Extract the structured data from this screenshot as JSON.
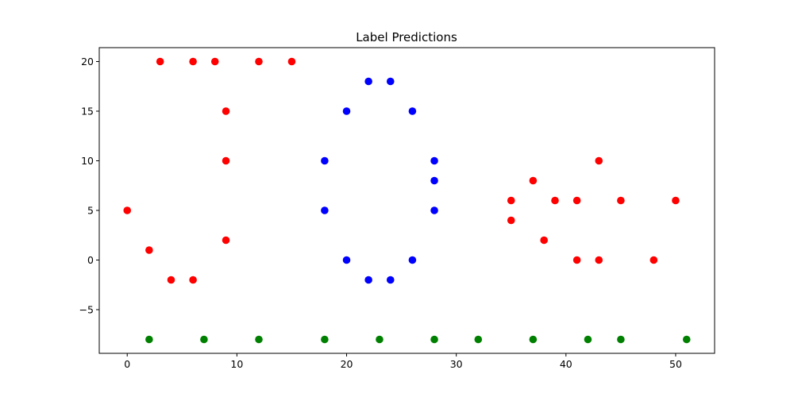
{
  "chart_data": {
    "type": "scatter",
    "title": "Label Predictions",
    "xlabel": "",
    "ylabel": "",
    "xlim": [
      -2.55,
      53.55
    ],
    "ylim": [
      -9.4,
      21.4
    ],
    "x_ticks": [
      0,
      10,
      20,
      30,
      40,
      50
    ],
    "y_ticks": [
      -5,
      0,
      5,
      10,
      15,
      20
    ],
    "x_tick_labels": [
      "0",
      "10",
      "20",
      "30",
      "40",
      "50"
    ],
    "y_tick_labels": [
      "−5",
      "0",
      "5",
      "10",
      "15",
      "20"
    ],
    "grid": false,
    "legend": "none",
    "series": [
      {
        "color": "#ff0000",
        "points": [
          [
            0,
            5
          ],
          [
            2,
            1
          ],
          [
            3,
            20
          ],
          [
            4,
            -2
          ],
          [
            6,
            20
          ],
          [
            6,
            -2
          ],
          [
            8,
            20
          ],
          [
            9,
            15
          ],
          [
            9,
            10
          ],
          [
            9,
            2
          ],
          [
            12,
            20
          ],
          [
            15,
            20
          ],
          [
            35,
            6
          ],
          [
            35,
            4
          ],
          [
            37,
            8
          ],
          [
            38,
            2
          ],
          [
            39,
            6
          ],
          [
            41,
            6
          ],
          [
            41,
            0
          ],
          [
            43,
            10
          ],
          [
            43,
            0
          ],
          [
            45,
            6
          ],
          [
            48,
            0
          ],
          [
            50,
            6
          ]
        ]
      },
      {
        "color": "#0000ff",
        "points": [
          [
            18,
            10
          ],
          [
            18,
            5
          ],
          [
            20,
            15
          ],
          [
            20,
            0
          ],
          [
            22,
            18
          ],
          [
            22,
            -2
          ],
          [
            24,
            18
          ],
          [
            24,
            -2
          ],
          [
            26,
            15
          ],
          [
            26,
            0
          ],
          [
            28,
            10
          ],
          [
            28,
            8
          ],
          [
            28,
            5
          ]
        ]
      },
      {
        "color": "#008000",
        "points": [
          [
            2,
            -8
          ],
          [
            7,
            -8
          ],
          [
            12,
            -8
          ],
          [
            18,
            -8
          ],
          [
            23,
            -8
          ],
          [
            28,
            -8
          ],
          [
            32,
            -8
          ],
          [
            37,
            -8
          ],
          [
            42,
            -8
          ],
          [
            45,
            -8
          ],
          [
            51,
            -8
          ]
        ]
      }
    ]
  }
}
